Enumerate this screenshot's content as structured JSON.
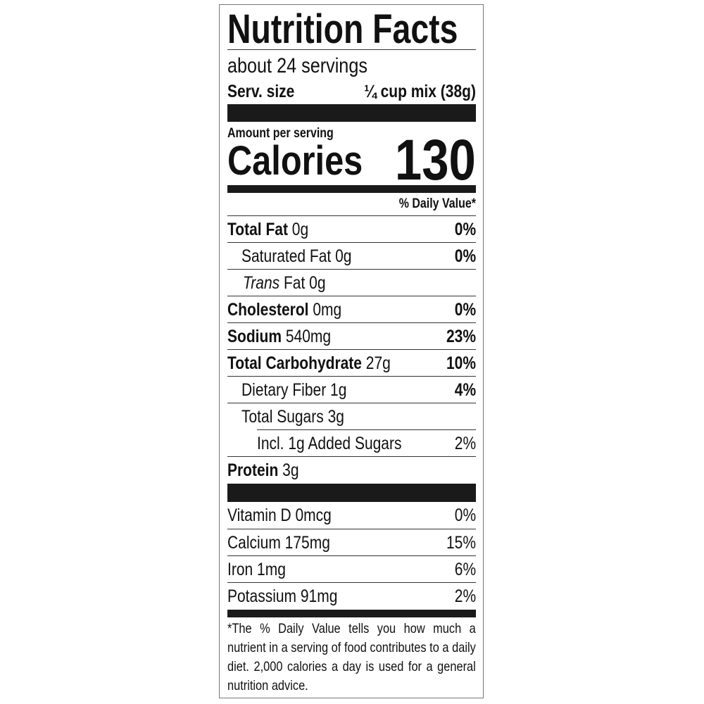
{
  "title": "Nutrition Facts",
  "servings": "about 24 servings",
  "serving_size": {
    "label": "Serv. size",
    "value": "¼ cup mix (38g)"
  },
  "amount_per_serving": "Amount per serving",
  "calories": {
    "label": "Calories",
    "value": "130"
  },
  "dv_header": "% Daily Value*",
  "nutrients": [
    {
      "name": "Total Fat",
      "amount": "0g",
      "dv": "0%"
    },
    {
      "name": "Saturated Fat 0g",
      "dv": "0%"
    },
    {
      "prefix": "Trans",
      "name": "Fat 0g"
    },
    {
      "name": "Cholesterol",
      "amount": "0mg",
      "dv": "0%"
    },
    {
      "name": "Sodium",
      "amount": "540mg",
      "dv": "23%"
    },
    {
      "name": "Total Carbohydrate",
      "amount": "27g",
      "dv": "10%"
    },
    {
      "name": "Dietary Fiber 1g",
      "dv": "4%"
    },
    {
      "name": "Total Sugars 3g"
    },
    {
      "name": "Incl. 1g Added Sugars",
      "dv": "2%"
    },
    {
      "name": "Protein",
      "amount": "3g"
    }
  ],
  "vitamins": [
    {
      "name": "Vitamin D 0mcg",
      "dv": "0%"
    },
    {
      "name": "Calcium 175mg",
      "dv": "15%"
    },
    {
      "name": "Iron 1mg",
      "dv": "6%"
    },
    {
      "name": "Potassium 91mg",
      "dv": "2%"
    }
  ],
  "footnote": "*The % Daily Value tells you how much a nutrient in a serving of food contributes to a daily diet. 2,000 calories a day is used for a general nutrition advice."
}
